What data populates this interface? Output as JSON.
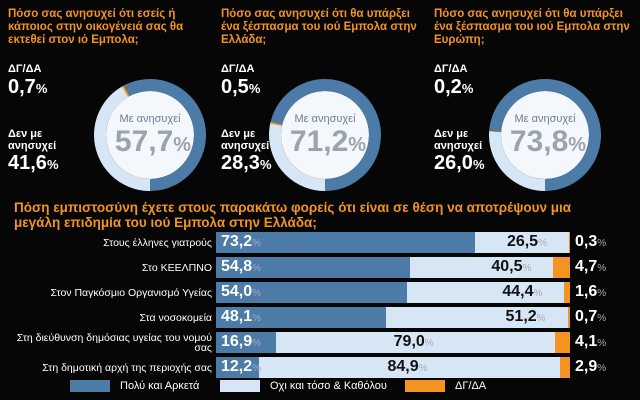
{
  "colors": {
    "agree": "#4b7ba6",
    "disagree": "#d6e6f5",
    "na": "#f39321"
  },
  "donuts": [
    {
      "title": "Πόσο σας ανησυχεί ότι εσείς ή κάποιος στην οικογένειά σας θα εκτεθεί στον ιό Εμπολα;",
      "na_label": "ΔΓ/ΔΑ",
      "na_value": "0,7",
      "no_label": "Δεν με ανησυχεί",
      "no_value": "41,6",
      "yes_label": "Με ανησυχεί",
      "yes_value": "57,7",
      "pct": "%",
      "values": [
        57.7,
        0.7,
        41.6
      ]
    },
    {
      "title": "Πόσο σας ανησυχεί ότι θα υπάρξει ένα ξέσπασμα του ιού Εμπολα στην Ελλάδα;",
      "na_label": "ΔΓ/ΔΑ",
      "na_value": "0,5",
      "no_label": "Δεν με ανησυχεί",
      "no_value": "28,3",
      "yes_label": "Με ανησυχεί",
      "yes_value": "71,2",
      "pct": "%",
      "values": [
        71.2,
        0.5,
        28.3
      ]
    },
    {
      "title": "Πόσο σας ανησυχεί ότι θα υπάρξει ένα ξέσπασμα του ιού Εμπολα στην Ευρώπη;",
      "na_label": "ΔΓ/ΔΑ",
      "na_value": "0,2",
      "no_label": "Δεν με ανησυχεί",
      "no_value": "26,0",
      "yes_label": "Με ανησυχεί",
      "yes_value": "73,8",
      "pct": "%",
      "values": [
        73.8,
        0.2,
        26.0
      ]
    }
  ],
  "chart_data": {
    "type": "bar",
    "title": "Πόση εμπιστοσύνη έχετε στους παρακάτω φορείς ότι είναι σε θέση να αποτρέψουν μια μεγάλη επιδημία του ιού Εμπολα στην Ελλάδα;",
    "categories": [
      "Στους έλληνες γιατρούς",
      "Στο ΚΕΕΛΠΝΟ",
      "Στον Παγκόσμιο Οργανισμό Υγείας",
      "Στα νοσοκομεία",
      "Στη διεύθυνση δημόσιας υγείας του νομού σας",
      "Στη δημοτική αρχή της περιοχής σας"
    ],
    "series": [
      {
        "name": "Πολύ και Αρκετά",
        "values": [
          73.2,
          54.8,
          54.0,
          48.1,
          16.9,
          12.2
        ],
        "labels": [
          "73,2",
          "54,8",
          "54,0",
          "48,1",
          "16,9",
          "12,2"
        ]
      },
      {
        "name": "Οχι και τόσο & Καθόλου",
        "values": [
          26.5,
          40.5,
          44.4,
          51.2,
          79.0,
          84.9
        ],
        "labels": [
          "26,5",
          "40,5",
          "44,4",
          "51,2",
          "79,0",
          "84,9"
        ]
      },
      {
        "name": "ΔΓ/ΔΑ",
        "values": [
          0.3,
          4.7,
          1.6,
          0.7,
          4.1,
          2.9
        ],
        "labels": [
          "0,3",
          "4,7",
          "1,6",
          "0,7",
          "4,1",
          "2,9"
        ]
      }
    ],
    "stacked": true,
    "xlim": [
      0,
      100
    ],
    "legend": "bottom",
    "pct": "%"
  }
}
